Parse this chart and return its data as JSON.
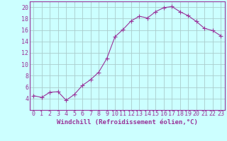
{
  "x": [
    0,
    1,
    2,
    3,
    4,
    5,
    6,
    7,
    8,
    9,
    10,
    11,
    12,
    13,
    14,
    15,
    16,
    17,
    18,
    19,
    20,
    21,
    22,
    23
  ],
  "y": [
    4.5,
    4.2,
    5.1,
    5.2,
    3.7,
    4.7,
    6.3,
    7.3,
    8.6,
    11.0,
    14.8,
    16.1,
    17.6,
    18.4,
    18.1,
    19.2,
    19.9,
    20.1,
    19.2,
    18.5,
    17.5,
    16.3,
    15.9,
    15.0
  ],
  "line_color": "#993399",
  "marker": "+",
  "marker_size": 4,
  "marker_linewidth": 0.8,
  "background_color": "#ccffff",
  "grid_color": "#aacccc",
  "xlabel": "Windchill (Refroidissement éolien,°C)",
  "ylabel": "",
  "title": "",
  "xlim": [
    -0.5,
    23.5
  ],
  "ylim": [
    2,
    21
  ],
  "yticks": [
    4,
    6,
    8,
    10,
    12,
    14,
    16,
    18,
    20
  ],
  "xticks": [
    0,
    1,
    2,
    3,
    4,
    5,
    6,
    7,
    8,
    9,
    10,
    11,
    12,
    13,
    14,
    15,
    16,
    17,
    18,
    19,
    20,
    21,
    22,
    23
  ],
  "tick_color": "#993399",
  "label_color": "#993399",
  "label_fontsize": 6.5,
  "tick_fontsize": 6.0,
  "linewidth": 0.8
}
